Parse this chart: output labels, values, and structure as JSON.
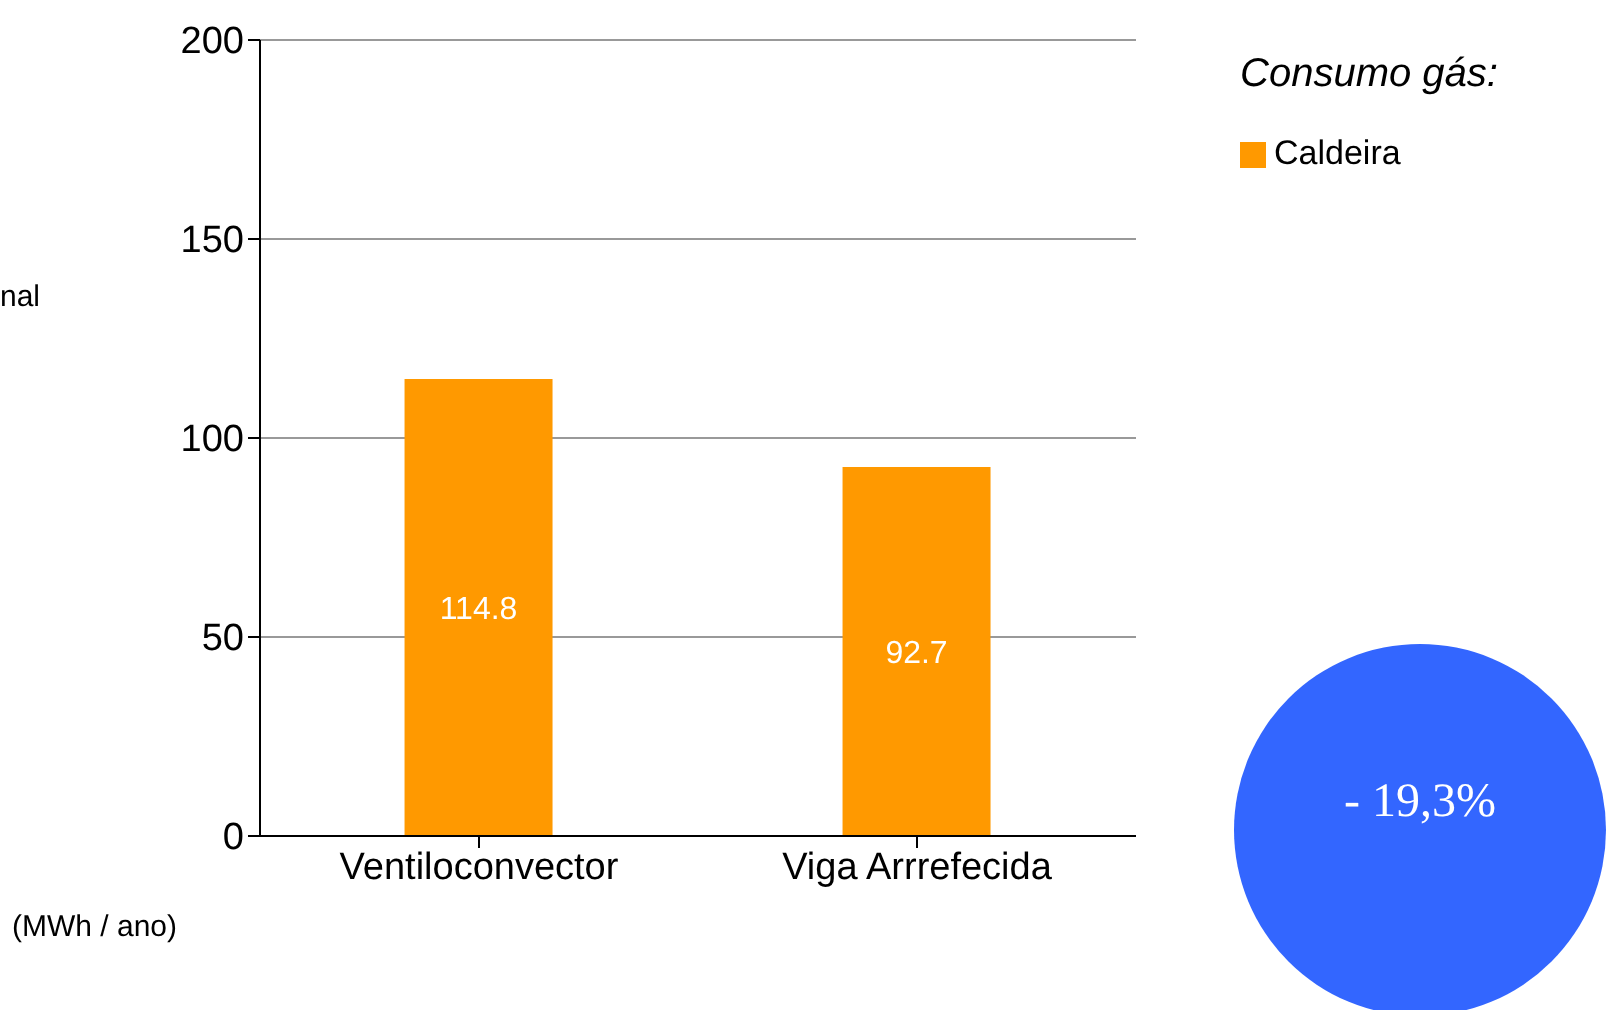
{
  "chart_data": {
    "type": "bar",
    "categories": [
      "Ventiloconvector",
      "Viga Arrrefecida"
    ],
    "series": [
      {
        "name": "Caldeira",
        "color": "#ff9900",
        "values": [
          114.8,
          92.7
        ]
      }
    ],
    "ylim": [
      0,
      200
    ],
    "yticks": [
      0,
      50,
      100,
      150,
      200
    ],
    "grid": "y",
    "legend": "top right",
    "legend_title": "Consumo gás:",
    "data_labels": true,
    "annotations": [
      "nal",
      "(MWh / ano)",
      "- 19,3%"
    ]
  }
}
